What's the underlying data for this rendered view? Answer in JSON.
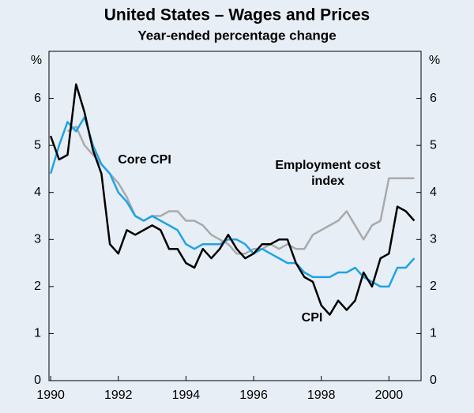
{
  "chart_data": {
    "type": "line",
    "title": "United States – Wages and Prices",
    "subtitle": "Year-ended percentage change",
    "ylabel": "%",
    "y2label": "%",
    "x": [
      1990.0,
      1990.25,
      1990.5,
      1990.75,
      1991.0,
      1991.25,
      1991.5,
      1991.75,
      1992.0,
      1992.25,
      1992.5,
      1992.75,
      1993.0,
      1993.25,
      1993.5,
      1993.75,
      1994.0,
      1994.25,
      1994.5,
      1994.75,
      1995.0,
      1995.25,
      1995.5,
      1995.75,
      1996.0,
      1996.25,
      1996.5,
      1996.75,
      1997.0,
      1997.25,
      1997.5,
      1997.75,
      1998.0,
      1998.25,
      1998.5,
      1998.75,
      1999.0,
      1999.25,
      1999.5,
      1999.75,
      2000.0,
      2000.25,
      2000.5,
      2000.75
    ],
    "xlim": [
      1989.95,
      2000.95
    ],
    "xticks": [
      1990,
      1992,
      1994,
      1996,
      1998,
      2000
    ],
    "ylim": [
      0,
      7
    ],
    "yticks": [
      0,
      1,
      2,
      3,
      4,
      5,
      6
    ],
    "y2lim": [
      0,
      7
    ],
    "y2ticks": [
      0,
      1,
      2,
      3,
      4,
      5,
      6
    ],
    "series": [
      {
        "name": "CPI",
        "color": "#000000",
        "values": [
          5.2,
          4.7,
          4.8,
          6.3,
          5.7,
          4.9,
          4.4,
          2.9,
          2.7,
          3.2,
          3.1,
          3.2,
          3.3,
          3.2,
          2.8,
          2.8,
          2.5,
          2.4,
          2.8,
          2.6,
          2.8,
          3.1,
          2.8,
          2.6,
          2.7,
          2.9,
          2.9,
          3.0,
          3.0,
          2.5,
          2.2,
          2.1,
          1.6,
          1.4,
          1.7,
          1.5,
          1.7,
          2.3,
          2.0,
          2.6,
          2.7,
          3.7,
          3.6,
          3.4
        ]
      },
      {
        "name": "Core CPI",
        "color": "#1fa3e3",
        "values": [
          4.4,
          5.0,
          5.5,
          5.3,
          5.6,
          5.0,
          4.6,
          4.4,
          4.0,
          3.8,
          3.5,
          3.4,
          3.5,
          3.4,
          3.3,
          3.2,
          2.9,
          2.8,
          2.9,
          2.9,
          2.9,
          3.0,
          3.0,
          2.9,
          2.7,
          2.8,
          2.7,
          2.6,
          2.5,
          2.5,
          2.3,
          2.2,
          2.2,
          2.2,
          2.3,
          2.3,
          2.4,
          2.2,
          2.1,
          2.0,
          2.0,
          2.4,
          2.4,
          2.6
        ]
      },
      {
        "name": "Employment cost index",
        "color": "#aaaaaa",
        "values": [
          null,
          null,
          5.3,
          5.4,
          5.0,
          4.8,
          4.6,
          4.4,
          4.2,
          3.9,
          3.5,
          3.4,
          3.5,
          3.5,
          3.6,
          3.6,
          3.4,
          3.4,
          3.3,
          3.1,
          3.0,
          2.9,
          2.7,
          2.7,
          2.8,
          2.8,
          2.9,
          2.8,
          2.9,
          2.8,
          2.8,
          3.1,
          3.2,
          3.3,
          3.4,
          3.6,
          3.3,
          3.0,
          3.3,
          3.4,
          4.3,
          4.3,
          4.3,
          4.3
        ]
      }
    ]
  }
}
